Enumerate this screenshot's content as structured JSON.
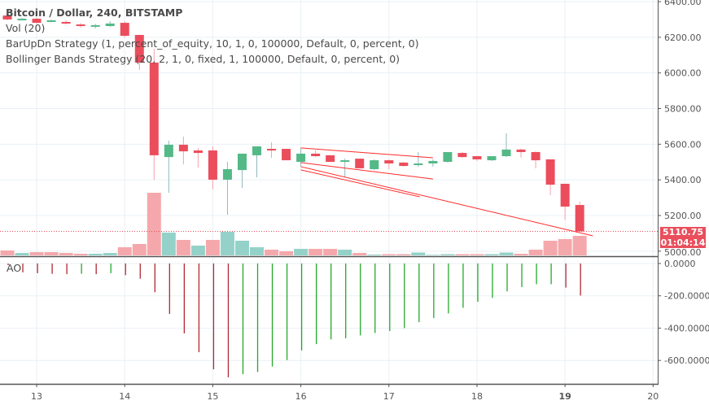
{
  "legend": {
    "title": "Bitcoin / Dollar, 240, BITSTAMP",
    "items": [
      "Vol (20)",
      "BarUpDn Strategy (1, percent_of_equity, 10, 1, 0, 100000, Default, 0, percent, 0)",
      "Bollinger Bands Strategy (20, 2, 1, 0, fixed, 1, 100000, Default, 0, percent, 0)"
    ]
  },
  "ao_label": "AO",
  "last_price": "5110.75",
  "countdown": "01:04:14",
  "colors": {
    "up": "#53b987",
    "down": "#eb4d5c",
    "vol_up": "#94d2c9",
    "vol_down": "#f5a8ab",
    "ao_up": "#26a82a",
    "ao_down": "#b22833",
    "strategy_line": "#ff2a2a",
    "grid": "#e9f0f6"
  },
  "chart_data": {
    "type": "candlestick",
    "symbol": "Bitcoin / Dollar",
    "interval": "240",
    "exchange": "BITSTAMP",
    "price_axis": {
      "ticks": [
        "6400.00",
        "6200.00",
        "6000.00",
        "5800.00",
        "5600.00",
        "5400.00",
        "5200.00",
        "5000.00"
      ],
      "range": [
        5000,
        6400
      ]
    },
    "time_axis": {
      "ticks": [
        "13",
        "14",
        "15",
        "16",
        "17",
        "18",
        "19",
        "20"
      ],
      "bold": "19"
    },
    "ohlc": [
      [
        6322,
        6330,
        6295,
        6300
      ],
      [
        6300,
        6310,
        6295,
        6304
      ],
      [
        6304,
        6310,
        6278,
        6281
      ],
      [
        6290,
        6300,
        6285,
        6295
      ],
      [
        6286,
        6295,
        6272,
        6277
      ],
      [
        6272,
        6280,
        6255,
        6263
      ],
      [
        6259,
        6275,
        6250,
        6268
      ],
      [
        6263,
        6290,
        6258,
        6277
      ],
      [
        6281,
        6290,
        6200,
        6208
      ],
      [
        6213,
        6215,
        6017,
        6058
      ],
      [
        6058,
        6135,
        5400,
        5538
      ],
      [
        5528,
        5620,
        5328,
        5597
      ],
      [
        5597,
        5643,
        5487,
        5560
      ],
      [
        5565,
        5579,
        5469,
        5551
      ],
      [
        5565,
        5588,
        5346,
        5401
      ],
      [
        5401,
        5501,
        5204,
        5460
      ],
      [
        5455,
        5547,
        5355,
        5547
      ],
      [
        5538,
        5588,
        5414,
        5588
      ],
      [
        5574,
        5611,
        5524,
        5570
      ],
      [
        5574,
        5574,
        5510,
        5510
      ],
      [
        5501,
        5579,
        5474,
        5547
      ],
      [
        5547,
        5565,
        5528,
        5533
      ],
      [
        5538,
        5538,
        5501,
        5501
      ],
      [
        5501,
        5519,
        5414,
        5510
      ],
      [
        5519,
        5519,
        5465,
        5465
      ],
      [
        5460,
        5515,
        5455,
        5510
      ],
      [
        5510,
        5515,
        5460,
        5492
      ],
      [
        5497,
        5500,
        5474,
        5478
      ],
      [
        5483,
        5556,
        5474,
        5492
      ],
      [
        5492,
        5515,
        5474,
        5506
      ],
      [
        5501,
        5556,
        5497,
        5556
      ],
      [
        5551,
        5556,
        5524,
        5528
      ],
      [
        5533,
        5533,
        5506,
        5515
      ],
      [
        5510,
        5528,
        5506,
        5533
      ],
      [
        5533,
        5661,
        5528,
        5570
      ],
      [
        5570,
        5575,
        5525,
        5556
      ],
      [
        5556,
        5560,
        5465,
        5510
      ],
      [
        5515,
        5515,
        5314,
        5373
      ],
      [
        5378,
        5378,
        5177,
        5250
      ],
      [
        5259,
        5278,
        5110,
        5110.75
      ]
    ],
    "volume": [
      6,
      3,
      4,
      4,
      3,
      2,
      2,
      3,
      10,
      14,
      77,
      28,
      19,
      12,
      19,
      29,
      18,
      10,
      7,
      5,
      8,
      8,
      8,
      7,
      3,
      1,
      1.5,
      1.5,
      3.5,
      0.7,
      1.5,
      1.5,
      1.5,
      1.5,
      3.5,
      2,
      7,
      18,
      20,
      24
    ],
    "volume_dir": [
      "d",
      "u",
      "d",
      "d",
      "d",
      "d",
      "u",
      "u",
      "d",
      "d",
      "d",
      "u",
      "d",
      "u",
      "d",
      "u",
      "u",
      "u",
      "d",
      "d",
      "u",
      "d",
      "d",
      "u",
      "d",
      "u",
      "d",
      "d",
      "u",
      "u",
      "u",
      "d",
      "d",
      "u",
      "u",
      "d",
      "d",
      "d",
      "d",
      "d"
    ],
    "strategy_lines": [
      {
        "from": [
          20,
          5579
        ],
        "to": [
          29,
          5524
        ]
      },
      {
        "from": [
          20,
          5497
        ],
        "to": [
          29,
          5405
        ]
      },
      {
        "from": [
          20,
          5474
        ],
        "to": [
          39.9,
          5086
        ]
      },
      {
        "from": [
          20,
          5456
        ],
        "to": [
          28.1,
          5305
        ]
      }
    ],
    "ao": {
      "ticks": [
        "0.0000",
        "-200.0000",
        "-400.0000",
        "-600.0000"
      ],
      "values": [
        -10,
        -55,
        -60,
        -64,
        -66,
        -64,
        -66,
        -60,
        -72,
        -94,
        -178,
        -312,
        -433,
        -549,
        -655,
        -705,
        -685,
        -672,
        -638,
        -598,
        -538,
        -499,
        -470,
        -463,
        -445,
        -430,
        -418,
        -400,
        -363,
        -338,
        -309,
        -274,
        -237,
        -213,
        -173,
        -146,
        -128,
        -128,
        -149,
        -198
      ],
      "dir": [
        "d",
        "d",
        "d",
        "d",
        "d",
        "u",
        "d",
        "u",
        "d",
        "d",
        "d",
        "d",
        "d",
        "d",
        "d",
        "d",
        "u",
        "u",
        "u",
        "u",
        "u",
        "u",
        "u",
        "u",
        "u",
        "u",
        "u",
        "u",
        "u",
        "u",
        "u",
        "u",
        "u",
        "u",
        "u",
        "u",
        "u",
        "u",
        "d",
        "d"
      ]
    }
  }
}
